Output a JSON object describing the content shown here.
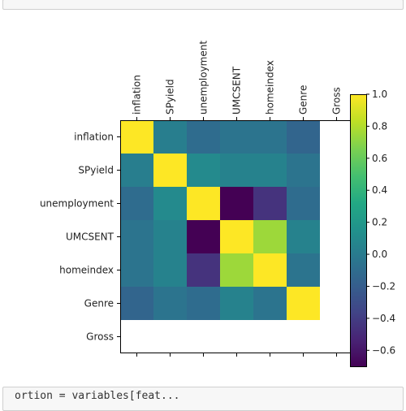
{
  "notebook": {
    "bottom_cell_code": "ortion = variables[feat..."
  },
  "chart_data": {
    "type": "heatmap",
    "title": "",
    "colormap": "viridis",
    "x_labels": [
      "inflation",
      "SPyield",
      "unemployment",
      "UMCSENT",
      "homeindex",
      "Genre",
      "Gross"
    ],
    "y_labels": [
      "inflation",
      "SPyield",
      "unemployment",
      "UMCSENT",
      "homeindex",
      "Genre",
      "Gross"
    ],
    "matrix": [
      [
        1.0,
        0.02,
        -0.1,
        -0.05,
        -0.05,
        -0.15,
        null
      ],
      [
        0.02,
        1.0,
        0.1,
        0.05,
        0.05,
        -0.05,
        null
      ],
      [
        -0.1,
        0.1,
        1.0,
        -0.7,
        -0.45,
        -0.1,
        null
      ],
      [
        -0.05,
        0.05,
        -0.7,
        1.0,
        0.75,
        0.05,
        null
      ],
      [
        -0.05,
        0.05,
        -0.45,
        0.75,
        1.0,
        -0.05,
        null
      ],
      [
        -0.15,
        -0.05,
        -0.1,
        0.05,
        -0.05,
        1.0,
        null
      ],
      [
        null,
        null,
        null,
        null,
        null,
        null,
        null
      ]
    ],
    "colorbar": {
      "min": -0.7,
      "max": 1.0,
      "ticks": [
        1.0,
        0.8,
        0.6,
        0.4,
        0.2,
        0.0,
        -0.2,
        -0.4,
        -0.6
      ],
      "tick_labels": [
        "1.0",
        "0.8",
        "0.6",
        "0.4",
        "0.2",
        "0.0",
        "−0.2",
        "−0.4",
        "−0.6"
      ]
    }
  }
}
